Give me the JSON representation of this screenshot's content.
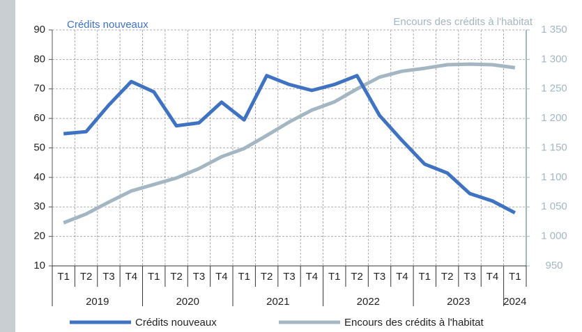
{
  "chart_data": {
    "type": "line",
    "y_label": "Crédits nouveaux",
    "y2_label": "Encours des crédits à l'habitat",
    "categories": [
      "T1",
      "T2",
      "T3",
      "T4",
      "T1",
      "T2",
      "T3",
      "T4",
      "T1",
      "T2",
      "T3",
      "T4",
      "T1",
      "T2",
      "T3",
      "T4",
      "T1",
      "T2",
      "T3",
      "T4",
      "T1"
    ],
    "years": [
      "2019",
      "2020",
      "2021",
      "2022",
      "2023",
      "2024"
    ],
    "series": [
      {
        "name": "Crédits nouveaux",
        "color": "#3f73c2",
        "values": [
          54.8,
          55.5,
          64.5,
          72.5,
          69,
          57.5,
          58.5,
          65.5,
          59.5,
          74.5,
          71.5,
          69.5,
          71.5,
          74.5,
          61,
          52.5,
          44.5,
          41.5,
          34.5,
          32,
          28
        ]
      },
      {
        "name": "Encours des crédits à l'habitat",
        "color": "#a3b6c2",
        "axis": "y2",
        "values": [
          1023,
          1038,
          1058,
          1077,
          1088,
          1099,
          1115,
          1135,
          1149,
          1171,
          1194,
          1214,
          1228,
          1250,
          1270,
          1280,
          1285,
          1291,
          1292,
          1291,
          1286
        ]
      }
    ],
    "ylim": [
      10,
      90
    ],
    "yticks": [
      10,
      20,
      30,
      40,
      50,
      60,
      70,
      80,
      90
    ],
    "y2lim": [
      950,
      1350
    ],
    "y2ticks": [
      950,
      {
        "value": 1000,
        "label": "1 000"
      },
      {
        "value": 1050,
        "label": "1 050"
      },
      {
        "value": 1100,
        "label": "1 100"
      },
      {
        "value": 1150,
        "label": "1 150"
      },
      {
        "value": 1200,
        "label": "1 200"
      },
      {
        "value": 1250,
        "label": "1 250"
      },
      {
        "value": 1300,
        "label": "1 300"
      },
      {
        "value": 1350,
        "label": "1 350"
      }
    ],
    "grid": true,
    "legend": "bottom"
  }
}
